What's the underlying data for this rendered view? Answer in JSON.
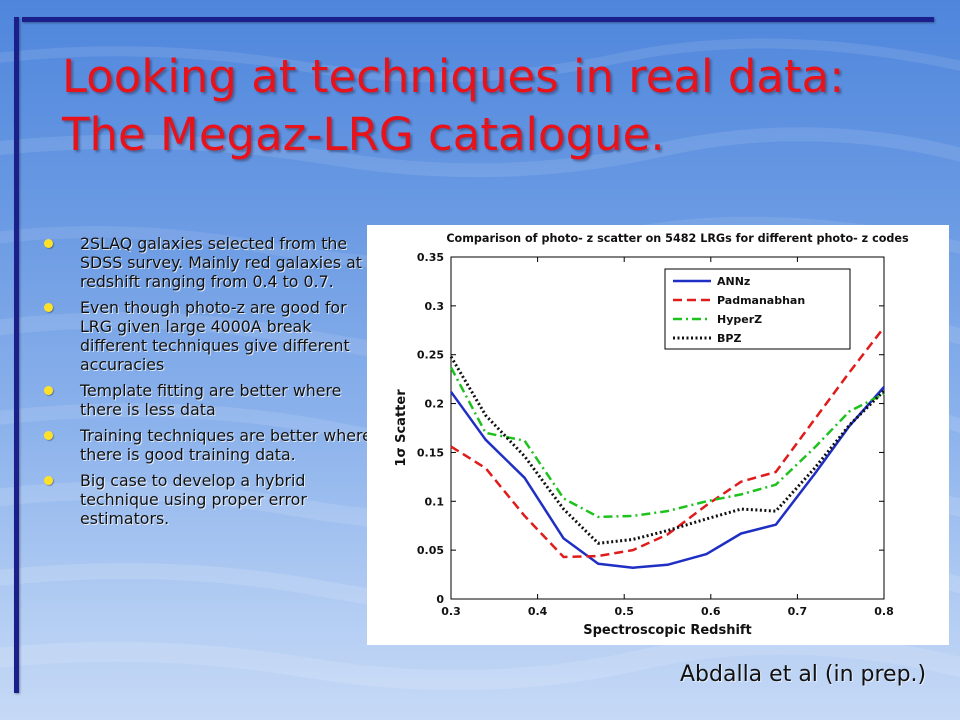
{
  "slide": {
    "title_lines": [
      "Looking at techniques in real data:",
      "The Megaz-LRG catalogue."
    ],
    "bullets": [
      "2SLAQ galaxies selected from the SDSS survey. Mainly red galaxies at redshift ranging from 0.4 to 0.7.",
      "Even though photo-z are good for LRG given large 4000A break different techniques give different accuracies",
      "Template fitting are better where there is less data",
      "Training techniques are better where there is good training data.",
      "Big case to develop a hybrid technique using proper error estimators."
    ],
    "credit": "Abdalla et al (in prep.)",
    "colors": {
      "title": "#e8121b",
      "bullet": "#ffe12a",
      "frame": "#1b1f8c"
    }
  },
  "chart_data": {
    "type": "line",
    "title": "Comparison of photo- z scatter on 5482 LRGs for different photo- z codes",
    "xlabel": "Spectroscopic Redshift",
    "ylabel": "1σ Scatter",
    "xlim": [
      0.3,
      0.8
    ],
    "ylim": [
      0,
      0.35
    ],
    "xticks": [
      0.3,
      0.4,
      0.5,
      0.6,
      0.7,
      0.8
    ],
    "yticks": [
      0,
      0.05,
      0.1,
      0.15,
      0.2,
      0.25,
      0.3,
      0.35
    ],
    "legend_position": "top-right",
    "grid": false,
    "x": [
      0.3,
      0.34,
      0.385,
      0.43,
      0.47,
      0.51,
      0.55,
      0.595,
      0.635,
      0.675,
      0.72,
      0.76,
      0.8
    ],
    "series": [
      {
        "name": "ANNz",
        "color": "#1f2fc4",
        "dash": "solid",
        "values": [
          0.212,
          0.163,
          0.124,
          0.062,
          0.036,
          0.032,
          0.035,
          0.046,
          0.067,
          0.076,
          0.128,
          0.177,
          0.217
        ]
      },
      {
        "name": "Padmanabhan",
        "color": "#e01b1b",
        "dash": "dashed",
        "values": [
          0.156,
          0.134,
          0.085,
          0.043,
          0.044,
          0.05,
          0.066,
          0.096,
          0.12,
          0.13,
          0.184,
          0.232,
          0.278
        ]
      },
      {
        "name": "HyperZ",
        "color": "#1ec21e",
        "dash": "dashdot",
        "values": [
          0.237,
          0.17,
          0.162,
          0.103,
          0.084,
          0.085,
          0.09,
          0.1,
          0.107,
          0.117,
          0.155,
          0.192,
          0.21
        ]
      },
      {
        "name": "BPZ",
        "color": "#111111",
        "dash": "dotted",
        "values": [
          0.248,
          0.188,
          0.146,
          0.092,
          0.057,
          0.061,
          0.07,
          0.082,
          0.092,
          0.09,
          0.134,
          0.178,
          0.213
        ]
      }
    ]
  }
}
